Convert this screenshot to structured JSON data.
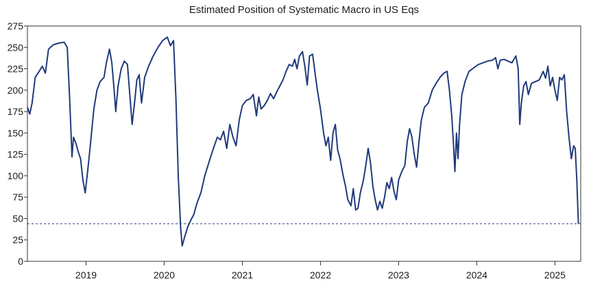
{
  "chart_data": {
    "type": "line",
    "title": "Estimated Position of Systematic Macro in US Eqs",
    "xlabel": "",
    "ylabel": "",
    "ylim": [
      0,
      275
    ],
    "xlim": [
      2018.25,
      2025.33
    ],
    "grid": false,
    "legend": "none",
    "colors": {
      "line": "#1f3a7a",
      "reference": "#1f3a7a",
      "frame": "#333333"
    },
    "y_ticks": [
      0,
      25,
      50,
      75,
      100,
      125,
      150,
      175,
      200,
      225,
      250,
      275
    ],
    "x_ticks": [
      {
        "value": 2019,
        "label": "2019"
      },
      {
        "value": 2020,
        "label": "2020"
      },
      {
        "value": 2021,
        "label": "2021"
      },
      {
        "value": 2022,
        "label": "2022"
      },
      {
        "value": 2023,
        "label": "2023"
      },
      {
        "value": 2024,
        "label": "2024"
      },
      {
        "value": 2025,
        "label": "2025"
      }
    ],
    "reference_line": {
      "y": 44,
      "style": "dashed"
    },
    "series": [
      {
        "name": "",
        "points": [
          [
            2018.25,
            180
          ],
          [
            2018.28,
            172
          ],
          [
            2018.31,
            185
          ],
          [
            2018.35,
            215
          ],
          [
            2018.4,
            222
          ],
          [
            2018.44,
            228
          ],
          [
            2018.48,
            220
          ],
          [
            2018.52,
            248
          ],
          [
            2018.58,
            253
          ],
          [
            2018.65,
            255
          ],
          [
            2018.72,
            256
          ],
          [
            2018.76,
            250
          ],
          [
            2018.79,
            190
          ],
          [
            2018.82,
            122
          ],
          [
            2018.84,
            145
          ],
          [
            2018.87,
            138
          ],
          [
            2018.9,
            128
          ],
          [
            2018.93,
            120
          ],
          [
            2018.96,
            95
          ],
          [
            2018.99,
            80
          ],
          [
            2019.02,
            105
          ],
          [
            2019.06,
            140
          ],
          [
            2019.1,
            178
          ],
          [
            2019.14,
            200
          ],
          [
            2019.18,
            210
          ],
          [
            2019.23,
            215
          ],
          [
            2019.26,
            232
          ],
          [
            2019.3,
            248
          ],
          [
            2019.33,
            232
          ],
          [
            2019.36,
            200
          ],
          [
            2019.38,
            175
          ],
          [
            2019.41,
            205
          ],
          [
            2019.45,
            225
          ],
          [
            2019.49,
            234
          ],
          [
            2019.53,
            230
          ],
          [
            2019.56,
            195
          ],
          [
            2019.59,
            160
          ],
          [
            2019.62,
            185
          ],
          [
            2019.65,
            212
          ],
          [
            2019.68,
            218
          ],
          [
            2019.71,
            185
          ],
          [
            2019.75,
            215
          ],
          [
            2019.8,
            228
          ],
          [
            2019.86,
            240
          ],
          [
            2019.92,
            250
          ],
          [
            2019.98,
            258
          ],
          [
            2020.04,
            262
          ],
          [
            2020.08,
            252
          ],
          [
            2020.12,
            258
          ],
          [
            2020.15,
            190
          ],
          [
            2020.18,
            100
          ],
          [
            2020.21,
            40
          ],
          [
            2020.23,
            18
          ],
          [
            2020.26,
            28
          ],
          [
            2020.3,
            40
          ],
          [
            2020.34,
            48
          ],
          [
            2020.38,
            55
          ],
          [
            2020.42,
            68
          ],
          [
            2020.47,
            80
          ],
          [
            2020.52,
            100
          ],
          [
            2020.58,
            118
          ],
          [
            2020.63,
            132
          ],
          [
            2020.68,
            145
          ],
          [
            2020.72,
            142
          ],
          [
            2020.76,
            152
          ],
          [
            2020.8,
            132
          ],
          [
            2020.84,
            160
          ],
          [
            2020.88,
            145
          ],
          [
            2020.92,
            135
          ],
          [
            2020.96,
            165
          ],
          [
            2021.0,
            182
          ],
          [
            2021.05,
            188
          ],
          [
            2021.1,
            190
          ],
          [
            2021.14,
            195
          ],
          [
            2021.18,
            170
          ],
          [
            2021.21,
            192
          ],
          [
            2021.24,
            178
          ],
          [
            2021.28,
            182
          ],
          [
            2021.32,
            188
          ],
          [
            2021.36,
            196
          ],
          [
            2021.4,
            190
          ],
          [
            2021.44,
            198
          ],
          [
            2021.48,
            205
          ],
          [
            2021.52,
            212
          ],
          [
            2021.56,
            222
          ],
          [
            2021.6,
            230
          ],
          [
            2021.64,
            228
          ],
          [
            2021.67,
            236
          ],
          [
            2021.7,
            225
          ],
          [
            2021.73,
            240
          ],
          [
            2021.77,
            245
          ],
          [
            2021.8,
            228
          ],
          [
            2021.83,
            206
          ],
          [
            2021.86,
            240
          ],
          [
            2021.9,
            242
          ],
          [
            2021.93,
            220
          ],
          [
            2021.96,
            200
          ],
          [
            2022.0,
            178
          ],
          [
            2022.04,
            150
          ],
          [
            2022.07,
            135
          ],
          [
            2022.1,
            145
          ],
          [
            2022.13,
            118
          ],
          [
            2022.16,
            150
          ],
          [
            2022.19,
            160
          ],
          [
            2022.22,
            130
          ],
          [
            2022.25,
            120
          ],
          [
            2022.29,
            100
          ],
          [
            2022.32,
            88
          ],
          [
            2022.35,
            72
          ],
          [
            2022.39,
            65
          ],
          [
            2022.42,
            85
          ],
          [
            2022.45,
            60
          ],
          [
            2022.48,
            62
          ],
          [
            2022.51,
            80
          ],
          [
            2022.55,
            95
          ],
          [
            2022.58,
            112
          ],
          [
            2022.61,
            132
          ],
          [
            2022.64,
            115
          ],
          [
            2022.67,
            88
          ],
          [
            2022.7,
            72
          ],
          [
            2022.73,
            60
          ],
          [
            2022.76,
            70
          ],
          [
            2022.79,
            62
          ],
          [
            2022.82,
            75
          ],
          [
            2022.85,
            92
          ],
          [
            2022.88,
            85
          ],
          [
            2022.91,
            98
          ],
          [
            2022.94,
            82
          ],
          [
            2022.97,
            72
          ],
          [
            2023.0,
            95
          ],
          [
            2023.04,
            105
          ],
          [
            2023.08,
            112
          ],
          [
            2023.11,
            140
          ],
          [
            2023.14,
            155
          ],
          [
            2023.17,
            145
          ],
          [
            2023.2,
            125
          ],
          [
            2023.23,
            110
          ],
          [
            2023.26,
            140
          ],
          [
            2023.29,
            165
          ],
          [
            2023.33,
            180
          ],
          [
            2023.38,
            185
          ],
          [
            2023.43,
            200
          ],
          [
            2023.48,
            208
          ],
          [
            2023.53,
            215
          ],
          [
            2023.58,
            220
          ],
          [
            2023.62,
            222
          ],
          [
            2023.65,
            200
          ],
          [
            2023.68,
            170
          ],
          [
            2023.7,
            140
          ],
          [
            2023.72,
            105
          ],
          [
            2023.74,
            150
          ],
          [
            2023.76,
            120
          ],
          [
            2023.78,
            160
          ],
          [
            2023.81,
            195
          ],
          [
            2023.85,
            210
          ],
          [
            2023.9,
            222
          ],
          [
            2023.96,
            226
          ],
          [
            2024.02,
            230
          ],
          [
            2024.08,
            232
          ],
          [
            2024.14,
            234
          ],
          [
            2024.2,
            235
          ],
          [
            2024.24,
            238
          ],
          [
            2024.27,
            225
          ],
          [
            2024.3,
            235
          ],
          [
            2024.35,
            236
          ],
          [
            2024.4,
            234
          ],
          [
            2024.45,
            232
          ],
          [
            2024.5,
            240
          ],
          [
            2024.53,
            225
          ],
          [
            2024.55,
            160
          ],
          [
            2024.57,
            185
          ],
          [
            2024.6,
            205
          ],
          [
            2024.63,
            210
          ],
          [
            2024.66,
            195
          ],
          [
            2024.7,
            208
          ],
          [
            2024.75,
            210
          ],
          [
            2024.8,
            212
          ],
          [
            2024.85,
            222
          ],
          [
            2024.88,
            214
          ],
          [
            2024.91,
            228
          ],
          [
            2024.94,
            205
          ],
          [
            2024.97,
            215
          ],
          [
            2025.0,
            200
          ],
          [
            2025.03,
            188
          ],
          [
            2025.06,
            215
          ],
          [
            2025.09,
            212
          ],
          [
            2025.12,
            218
          ],
          [
            2025.15,
            175
          ],
          [
            2025.18,
            145
          ],
          [
            2025.21,
            120
          ],
          [
            2025.24,
            135
          ],
          [
            2025.26,
            132
          ],
          [
            2025.28,
            95
          ],
          [
            2025.3,
            44
          ]
        ]
      }
    ]
  }
}
